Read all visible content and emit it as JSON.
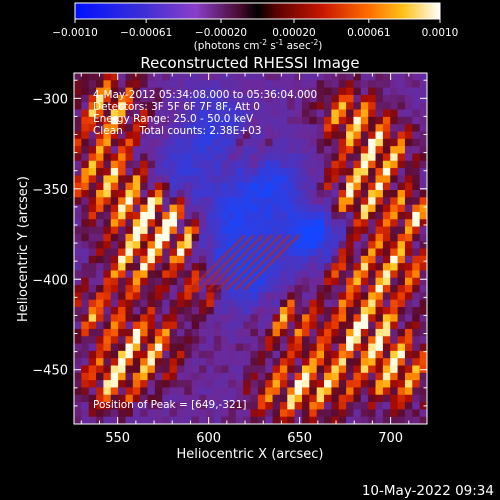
{
  "colorbar": {
    "tick_labels": [
      "-0.0010",
      "-0.00061",
      "-0.00020",
      "0.00020",
      "0.00061",
      "0.0010"
    ],
    "range": [
      -0.001,
      0.001
    ],
    "units_main": "(photons cm",
    "units_sup1": "-2",
    "units_mid1": " s",
    "units_sup2": "-1",
    "units_mid2": " asec",
    "units_sup3": "-2",
    "units_end": ")"
  },
  "title": "Reconstructed RHESSI Image",
  "annotations": {
    "time": "4-May-2012 05:34:08.000 to 05:36:04.000",
    "detectors": "Detectors: 3F 5F 6F 7F 8F, Att 0",
    "energy": "Energy Range: 25.0 - 50.0 keV",
    "method": "Clean     Total counts: 2.38E+03",
    "peak": "Position of Peak = [649,-321]"
  },
  "x_axis": {
    "label": "Heliocentric X (arcsec)",
    "range": [
      526,
      720
    ],
    "ticks": [
      550,
      600,
      650,
      700
    ],
    "tick_labels": [
      "550",
      "600",
      "650",
      "700"
    ]
  },
  "y_axis": {
    "label": "Heliocentric Y (arcsec)",
    "range": [
      -480,
      -286
    ],
    "ticks": [
      -300,
      -350,
      -400,
      -450
    ],
    "tick_labels": [
      "-300",
      "-350",
      "-400",
      "-450"
    ]
  },
  "footer_timestamp": "10-May-2022 09:34",
  "image_grid": {
    "cols": 48,
    "rows": 48,
    "peak": [
      649,
      -321
    ]
  }
}
